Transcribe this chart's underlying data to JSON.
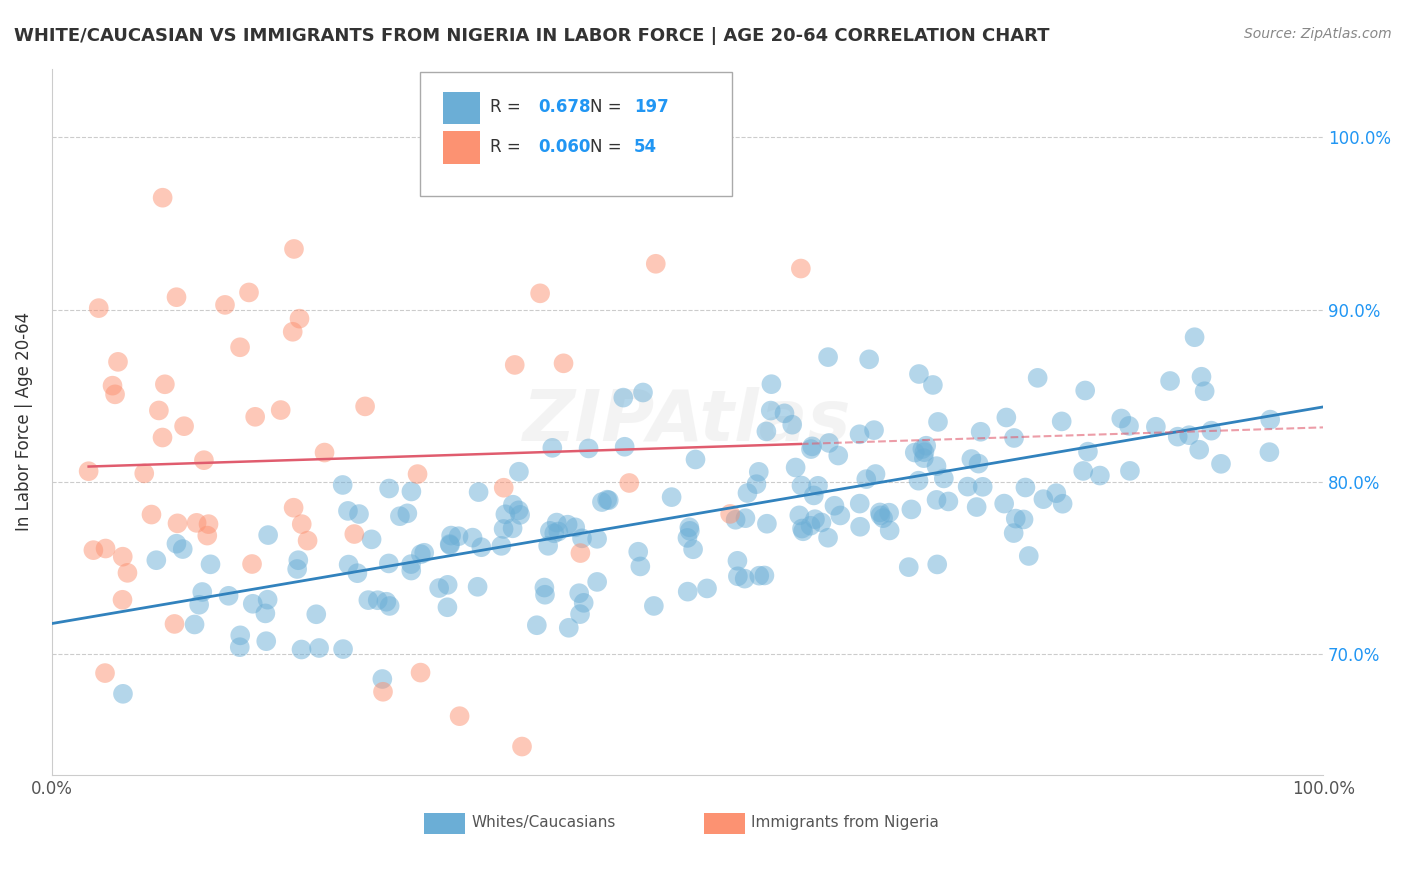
{
  "title": "WHITE/CAUCASIAN VS IMMIGRANTS FROM NIGERIA IN LABOR FORCE | AGE 20-64 CORRELATION CHART",
  "source": "Source: ZipAtlas.com",
  "ylabel": "In Labor Force | Age 20-64",
  "legend_label1": "Whites/Caucasians",
  "legend_label2": "Immigrants from Nigeria",
  "R1": 0.678,
  "N1": 197,
  "R2": 0.06,
  "N2": 54,
  "color_blue": "#6baed6",
  "color_pink": "#fc9272",
  "color_blue_line": "#3182bd",
  "color_pink_line": "#e05c6e",
  "ytick_labels": [
    "70.0%",
    "80.0%",
    "90.0%",
    "100.0%"
  ],
  "ytick_values": [
    0.7,
    0.8,
    0.9,
    1.0
  ],
  "xlim": [
    0.0,
    1.0
  ],
  "ylim": [
    0.63,
    1.04
  ],
  "seed_blue": 42,
  "seed_pink": 99
}
